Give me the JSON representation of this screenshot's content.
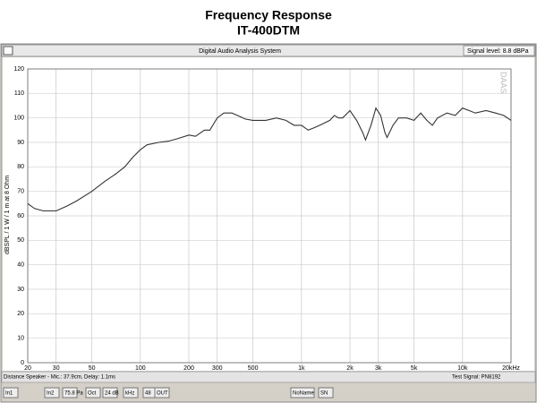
{
  "chart_data": {
    "type": "line",
    "title": "Frequency Response",
    "subtitle": "IT-400DTM",
    "y_label": "dBSPL / 1 W / 1 m at 8 Ohm",
    "log_x": true,
    "grid": true,
    "color": "#333333",
    "x": [
      20,
      22,
      25,
      30,
      35,
      40,
      50,
      60,
      70,
      80,
      90,
      100,
      110,
      130,
      150,
      170,
      200,
      220,
      250,
      270,
      300,
      330,
      370,
      400,
      450,
      500,
      600,
      700,
      800,
      900,
      1000,
      1100,
      1200,
      1300,
      1500,
      1600,
      1700,
      1800,
      2000,
      2200,
      2400,
      2500,
      2700,
      2900,
      3100,
      3300,
      3400,
      3700,
      4000,
      4500,
      5000,
      5500,
      6000,
      6500,
      7000,
      8000,
      9000,
      10000,
      11000,
      12000,
      14000,
      16000,
      18000,
      20000
    ],
    "values": [
      65,
      63,
      62,
      62,
      64,
      66,
      70,
      74,
      77,
      80,
      84,
      87,
      89,
      90,
      90.5,
      91.5,
      93,
      92.5,
      95,
      95,
      100,
      102,
      102,
      101,
      99.5,
      99,
      99,
      100,
      99,
      97,
      97,
      95,
      96,
      97,
      99,
      101,
      100,
      100,
      103,
      99,
      94,
      91,
      97,
      104,
      101,
      94,
      92,
      97,
      100,
      100,
      99,
      102,
      99,
      97,
      100,
      102,
      101,
      104,
      103,
      102,
      103,
      102,
      101,
      99
    ],
    "xlim": [
      20,
      20000
    ],
    "ylim": [
      0,
      120
    ],
    "xticks": [
      20,
      30,
      50,
      100,
      200,
      300,
      500,
      {
        "value": 1000,
        "label": "1k"
      },
      {
        "value": 2000,
        "label": "2k"
      },
      {
        "value": 3000,
        "label": "3k"
      },
      {
        "value": 5000,
        "label": "5k"
      },
      {
        "value": 10000,
        "label": "10k"
      },
      {
        "value": 20000,
        "label": "20kHz"
      }
    ],
    "yticks": [
      0,
      10,
      20,
      30,
      40,
      50,
      60,
      70,
      80,
      90,
      100,
      110,
      120
    ]
  },
  "window": {
    "title": "Digital Audio Analysis System",
    "signal_level": "Signal level: 8.8 dBPa",
    "watermark": "DAAS",
    "status_left": "Distance Speaker - Mic.: 37.9cm, Delay: 1.1ms",
    "status_right": "Test Signal: PN8192",
    "toolbar": [
      "In1",
      "In2",
      "75.8 Pa",
      "Oct",
      "24 dB",
      "kHz",
      "48",
      "OUT",
      "NoName",
      "SN"
    ]
  }
}
